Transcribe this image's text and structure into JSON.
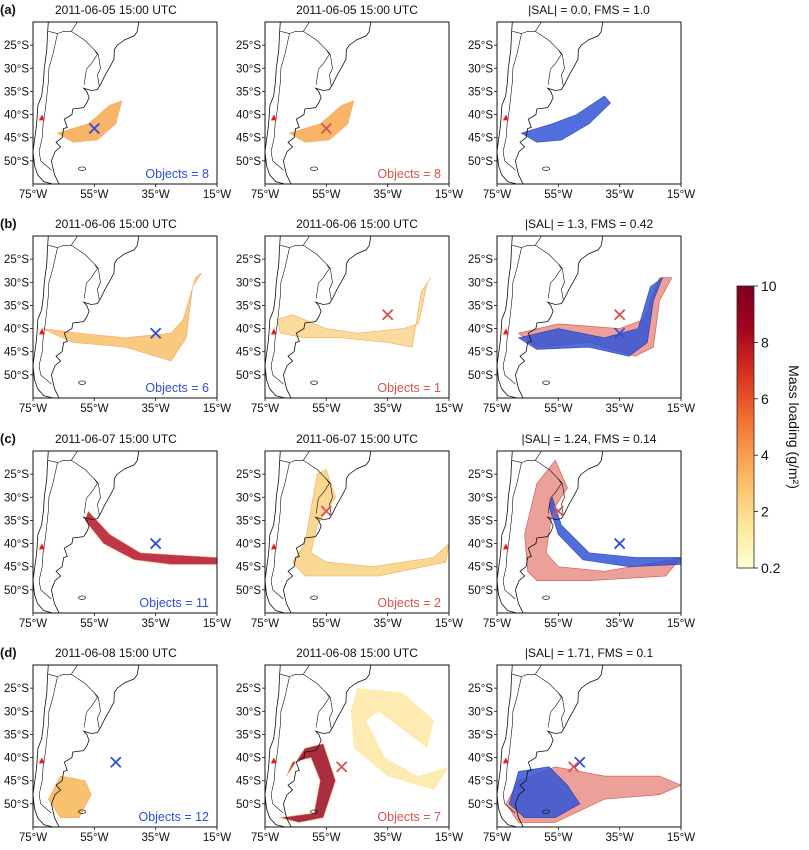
{
  "figure": {
    "panels": [
      {
        "letter": "(a)",
        "maps": [
          {
            "title": "2011-06-05 15:00 UTC",
            "objects": "Objects = 8",
            "objects_color": "#2f4fd6"
          },
          {
            "title": "2011-06-05 15:00 UTC",
            "objects": "Objects = 8",
            "objects_color": "#d9534f"
          },
          {
            "title": "|SAL| = 0.0, FMS = 1.0",
            "objects": ""
          }
        ]
      },
      {
        "letter": "(b)",
        "maps": [
          {
            "title": "2011-06-06 15:00 UTC",
            "objects": "Objects = 6",
            "objects_color": "#2f4fd6"
          },
          {
            "title": "2011-06-06 15:00 UTC",
            "objects": "Objects = 1",
            "objects_color": "#d9534f"
          },
          {
            "title": "|SAL| = 1.3, FMS = 0.42",
            "objects": ""
          }
        ]
      },
      {
        "letter": "(c)",
        "maps": [
          {
            "title": "2011-06-07 15:00 UTC",
            "objects": "Objects = 11",
            "objects_color": "#2f4fd6"
          },
          {
            "title": "2011-06-07 15:00 UTC",
            "objects": "Objects = 2",
            "objects_color": "#d9534f"
          },
          {
            "title": "|SAL| = 1.24, FMS = 0.14",
            "objects": ""
          }
        ]
      },
      {
        "letter": "(d)",
        "maps": [
          {
            "title": "2011-06-08 15:00 UTC",
            "objects": "Objects = 12",
            "objects_color": "#2f4fd6"
          },
          {
            "title": "2011-06-08 15:00 UTC",
            "objects": "Objects = 7",
            "objects_color": "#d9534f"
          },
          {
            "title": "|SAL| = 1.71, FMS = 0.1",
            "objects": ""
          }
        ]
      }
    ],
    "lat_ticks": [
      "25°S",
      "30°S",
      "35°S",
      "40°S",
      "45°S",
      "50°S"
    ],
    "lon_ticks": [
      "75°W",
      "55°W",
      "35°W",
      "15°W"
    ],
    "colorbar": {
      "label": "Mass loading (g/m²)",
      "ticks": [
        "10",
        "8",
        "6",
        "4",
        "2",
        "0.2"
      ],
      "colors": [
        "#ffffd0",
        "#fde89a",
        "#fdb863",
        "#f57a33",
        "#d93521",
        "#a10420",
        "#7f0020"
      ]
    },
    "colors": {
      "observed": "#2f4fd6",
      "simulated": "#d9534f",
      "observed_fill": "#3355d8",
      "simulated_fill": "#e89088"
    }
  }
}
